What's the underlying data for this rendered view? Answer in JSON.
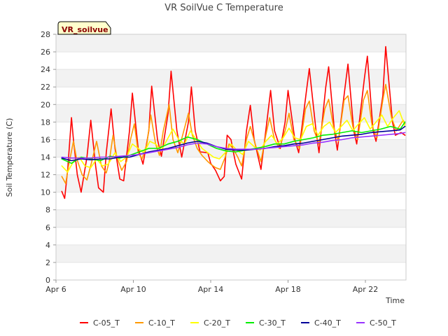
{
  "chart_data": {
    "type": "line",
    "title": "VR SoilVue C Temperature",
    "xlabel": "Time",
    "ylabel": "Soil Temperature (C)",
    "annotation": "VR_soilvue",
    "ylim": [
      0,
      28
    ],
    "yticks": [
      0,
      2,
      4,
      6,
      8,
      10,
      12,
      14,
      16,
      18,
      20,
      22,
      24,
      26,
      28
    ],
    "xlim": [
      0,
      18.1
    ],
    "xunit": "days since Apr 6",
    "xticks": [
      {
        "x": 0,
        "label": "Apr 6"
      },
      {
        "x": 4,
        "label": "Apr 10"
      },
      {
        "x": 8,
        "label": "Apr 14"
      },
      {
        "x": 12,
        "label": "Apr 18"
      },
      {
        "x": 16,
        "label": "Apr 22"
      }
    ],
    "grid": "horizontal bands",
    "legend_position": "bottom",
    "series": [
      {
        "name": "C-05_T",
        "color": "#ff0000",
        "x": [
          0.3,
          0.45,
          0.6,
          0.8,
          0.9,
          1.1,
          1.3,
          1.6,
          1.8,
          2.05,
          2.2,
          2.45,
          2.6,
          2.85,
          3.05,
          3.3,
          3.5,
          3.8,
          3.95,
          4.25,
          4.5,
          4.8,
          4.95,
          5.25,
          5.45,
          5.8,
          5.95,
          6.25,
          6.5,
          6.85,
          7.0,
          7.2,
          7.45,
          7.85,
          8.0,
          8.25,
          8.5,
          8.7,
          8.85,
          9.05,
          9.15,
          9.3,
          9.6,
          9.85,
          10.05,
          10.25,
          10.6,
          10.85,
          11.1,
          11.3,
          11.6,
          11.85,
          12.0,
          12.35,
          12.55,
          12.95,
          13.1,
          13.45,
          13.6,
          13.95,
          14.1,
          14.4,
          14.55,
          14.95,
          15.1,
          15.4,
          15.55,
          15.95,
          16.1,
          16.4,
          16.55,
          16.9,
          17.05,
          17.4,
          17.55,
          17.85,
          18.05
        ],
        "values": [
          10.1,
          9.3,
          12.5,
          18.5,
          16.0,
          12.0,
          10.0,
          14.0,
          18.2,
          13.0,
          10.5,
          10.0,
          14.5,
          19.5,
          15.0,
          11.5,
          11.3,
          17.0,
          21.3,
          15.0,
          13.2,
          17.0,
          22.1,
          16.0,
          14.1,
          19.0,
          23.8,
          17.0,
          14.0,
          18.0,
          22.0,
          17.0,
          14.6,
          14.5,
          13.3,
          12.5,
          11.3,
          11.8,
          16.5,
          16.0,
          14.8,
          13.2,
          11.5,
          17.0,
          19.9,
          16.0,
          12.6,
          17.0,
          21.6,
          17.0,
          15.0,
          18.0,
          21.6,
          16.0,
          14.5,
          21.5,
          24.1,
          17.0,
          14.5,
          22.0,
          24.3,
          17.0,
          14.8,
          22.0,
          24.6,
          17.0,
          15.5,
          23.0,
          25.5,
          17.0,
          15.8,
          21.0,
          26.6,
          18.0,
          16.5,
          16.8,
          16.5
        ]
      },
      {
        "name": "C-10_T",
        "color": "#ff9900",
        "x": [
          0.3,
          0.5,
          0.65,
          0.9,
          1.05,
          1.35,
          1.6,
          1.85,
          2.1,
          2.35,
          2.6,
          2.75,
          2.95,
          3.15,
          3.4,
          3.65,
          3.85,
          4.05,
          4.25,
          4.45,
          4.7,
          4.9,
          5.15,
          5.35,
          5.55,
          5.85,
          6.05,
          6.3,
          6.55,
          6.85,
          7.05,
          7.3,
          7.55,
          7.85,
          8.0,
          8.25,
          8.5,
          8.75,
          8.95,
          9.15,
          9.4,
          9.6,
          9.85,
          10.05,
          10.3,
          10.6,
          10.85,
          11.05,
          11.3,
          11.55,
          11.85,
          12.05,
          12.3,
          12.6,
          12.9,
          13.1,
          13.35,
          13.6,
          13.9,
          14.1,
          14.35,
          14.6,
          14.9,
          15.1,
          15.35,
          15.6,
          15.9,
          16.1,
          16.35,
          16.6,
          16.9,
          17.05,
          17.35,
          17.6,
          17.95,
          18.05
        ],
        "values": [
          11.8,
          11.0,
          13.0,
          15.8,
          14.0,
          12.0,
          11.4,
          13.5,
          15.8,
          13.0,
          12.2,
          13.5,
          16.5,
          14.0,
          12.5,
          13.5,
          16.0,
          17.8,
          14.5,
          13.8,
          15.5,
          18.8,
          15.5,
          14.2,
          17.0,
          20.0,
          16.0,
          14.5,
          16.5,
          19.0,
          16.5,
          15.0,
          14.2,
          13.5,
          13.2,
          12.8,
          12.6,
          14.0,
          15.5,
          15.0,
          14.0,
          13.0,
          16.0,
          17.5,
          15.5,
          13.5,
          16.5,
          18.5,
          16.0,
          15.0,
          17.0,
          19.0,
          16.0,
          15.0,
          19.5,
          20.4,
          17.0,
          15.5,
          19.5,
          20.6,
          17.5,
          15.8,
          20.5,
          21.0,
          17.5,
          16.0,
          20.5,
          21.6,
          17.5,
          16.2,
          20.5,
          22.3,
          18.5,
          17.0,
          18.2,
          17.8
        ]
      },
      {
        "name": "C-20_T",
        "color": "#ffff00",
        "x": [
          0.3,
          0.6,
          0.9,
          1.2,
          1.5,
          1.8,
          2.1,
          2.4,
          2.7,
          3.05,
          3.35,
          3.65,
          3.95,
          4.25,
          4.55,
          4.85,
          5.15,
          5.45,
          5.75,
          6.05,
          6.35,
          6.65,
          6.95,
          7.25,
          7.55,
          7.85,
          8.15,
          8.45,
          8.75,
          9.05,
          9.35,
          9.65,
          9.95,
          10.25,
          10.55,
          10.85,
          11.15,
          11.45,
          11.75,
          12.05,
          12.35,
          12.65,
          12.95,
          13.25,
          13.55,
          13.85,
          14.15,
          14.45,
          14.75,
          15.05,
          15.35,
          15.65,
          15.95,
          16.25,
          16.55,
          16.85,
          17.15,
          17.45,
          17.75,
          18.05
        ],
        "values": [
          13.0,
          12.3,
          13.5,
          14.0,
          13.0,
          12.8,
          13.8,
          13.0,
          13.2,
          14.5,
          13.5,
          14.0,
          15.5,
          15.0,
          14.5,
          15.8,
          15.5,
          14.8,
          16.0,
          17.2,
          16.0,
          15.5,
          17.0,
          16.0,
          15.0,
          14.5,
          14.0,
          13.8,
          14.5,
          15.5,
          14.8,
          14.3,
          15.8,
          15.2,
          14.8,
          15.8,
          16.5,
          15.5,
          16.2,
          17.3,
          16.2,
          16.0,
          17.5,
          17.8,
          16.5,
          17.5,
          18.0,
          16.8,
          17.5,
          18.2,
          17.0,
          17.8,
          18.5,
          17.2,
          18.0,
          18.8,
          17.5,
          18.5,
          19.3,
          17.5
        ]
      },
      {
        "name": "C-30_T",
        "color": "#00ee00",
        "x": [
          0.3,
          0.8,
          1.3,
          1.8,
          2.3,
          2.8,
          3.3,
          3.8,
          4.3,
          4.8,
          5.3,
          5.8,
          6.3,
          6.8,
          7.3,
          7.8,
          8.3,
          8.8,
          9.3,
          9.8,
          10.3,
          10.8,
          11.3,
          11.8,
          12.3,
          12.8,
          13.3,
          13.8,
          14.3,
          14.8,
          15.3,
          15.8,
          16.3,
          16.8,
          17.3,
          17.8,
          18.05
        ],
        "values": [
          13.8,
          13.3,
          14.0,
          13.8,
          13.6,
          14.1,
          13.9,
          14.2,
          14.6,
          15.0,
          15.0,
          15.5,
          15.8,
          16.3,
          16.0,
          15.5,
          15.0,
          14.7,
          14.6,
          14.8,
          15.0,
          15.2,
          15.5,
          15.5,
          15.8,
          16.0,
          16.2,
          16.5,
          16.6,
          16.8,
          17.0,
          16.8,
          17.0,
          17.2,
          17.5,
          17.2,
          18.0
        ]
      },
      {
        "name": "C-40_T",
        "color": "#000099",
        "x": [
          0.3,
          0.8,
          1.3,
          1.8,
          2.3,
          2.8,
          3.3,
          3.8,
          4.3,
          4.8,
          5.3,
          5.8,
          6.3,
          6.8,
          7.3,
          7.8,
          8.3,
          8.8,
          9.3,
          9.8,
          10.3,
          10.8,
          11.3,
          11.8,
          12.3,
          12.8,
          13.3,
          13.8,
          14.3,
          14.8,
          15.3,
          15.8,
          16.3,
          16.8,
          17.3,
          17.8,
          18.05
        ],
        "values": [
          13.9,
          13.6,
          13.8,
          13.7,
          13.8,
          13.8,
          14.0,
          14.0,
          14.3,
          14.6,
          14.8,
          15.0,
          15.3,
          15.6,
          15.8,
          15.6,
          15.2,
          14.9,
          14.8,
          14.8,
          14.9,
          15.0,
          15.2,
          15.3,
          15.5,
          15.6,
          15.8,
          16.0,
          16.2,
          16.4,
          16.5,
          16.6,
          16.8,
          16.9,
          17.0,
          17.1,
          17.5
        ]
      },
      {
        "name": "C-50_T",
        "color": "#9933ff",
        "x": [
          0.3,
          0.8,
          1.3,
          1.8,
          2.3,
          2.8,
          3.3,
          3.8,
          4.3,
          4.8,
          5.3,
          5.8,
          6.3,
          6.8,
          7.3,
          7.8,
          8.3,
          8.8,
          9.3,
          9.8,
          10.3,
          10.8,
          11.3,
          11.8,
          12.3,
          12.8,
          13.3,
          13.8,
          14.3,
          14.8,
          15.3,
          15.8,
          16.3,
          16.8,
          17.3,
          17.8,
          18.05
        ],
        "values": [
          14.0,
          13.9,
          13.9,
          13.9,
          14.0,
          14.0,
          14.1,
          14.2,
          14.3,
          14.5,
          14.7,
          14.9,
          15.1,
          15.4,
          15.6,
          15.5,
          15.2,
          15.0,
          14.9,
          14.9,
          14.9,
          15.0,
          15.1,
          15.2,
          15.3,
          15.4,
          15.6,
          15.7,
          15.9,
          16.0,
          16.2,
          16.3,
          16.4,
          16.5,
          16.6,
          16.7,
          16.8
        ]
      }
    ]
  }
}
